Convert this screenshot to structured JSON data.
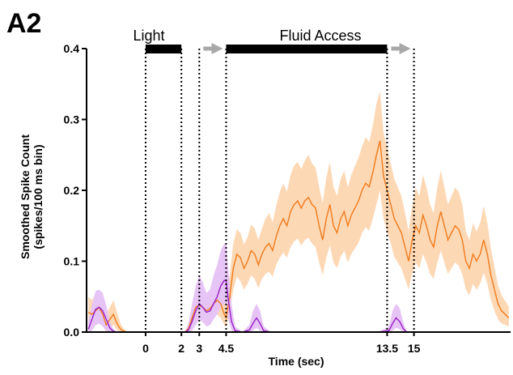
{
  "panel_label": "A2",
  "chart_data": {
    "type": "line",
    "title": "",
    "xlabel": "Time (sec)",
    "ylabel_line1": "Smoothed Spike Count",
    "ylabel_line2": "(spikes/100 ms bin)",
    "xlim": [
      -3.3,
      20.4
    ],
    "ylim": [
      0,
      0.4
    ],
    "yticks": [
      "0.0",
      "0.1",
      "0.2",
      "0.3",
      "0.4"
    ],
    "ytick_values": [
      0,
      0.1,
      0.2,
      0.3,
      0.4
    ],
    "xticks": [
      "0",
      "2",
      "3",
      "4.5",
      "13.5",
      "15"
    ],
    "xtick_values": [
      0,
      2,
      3,
      4.5,
      13.5,
      15
    ],
    "event_lines": [
      0,
      2,
      3,
      4.5,
      13.5,
      15
    ],
    "event_bars": [
      {
        "label": "Light",
        "start": 0,
        "end": 2
      },
      {
        "label": "Fluid Access",
        "start": 4.5,
        "end": 13.5
      }
    ],
    "arrows": [
      {
        "from": 3,
        "to": 4.5
      },
      {
        "from": 13.5,
        "to": 15
      }
    ],
    "colors": {
      "orange_line": "#f07a1a",
      "orange_band": "#fdd8b5",
      "purple_line": "#9b1fc8",
      "purple_band": "#e6c4f5",
      "arrow": "#a8a8a8"
    },
    "series": [
      {
        "x": [
          -3.2,
          -3.0,
          -2.8,
          -2.6,
          -2.4,
          -2.2,
          -2.0,
          -1.8,
          -1.6,
          -1.4,
          -1.2,
          -1.0,
          -0.8,
          -0.6,
          -0.4,
          -0.2,
          0.0,
          0.5,
          1.0,
          1.5,
          2.0,
          2.2,
          2.4,
          2.6,
          2.8,
          3.0,
          3.2,
          3.4,
          3.6,
          3.8,
          4.0,
          4.2,
          4.4,
          4.5,
          4.7,
          4.9,
          5.1,
          5.3,
          5.5,
          5.7,
          5.9,
          6.1,
          6.3,
          6.5,
          6.7,
          6.9,
          7.1,
          7.3,
          7.5,
          7.7,
          7.9,
          8.1,
          8.3,
          8.5,
          8.7,
          8.9,
          9.1,
          9.3,
          9.5,
          9.7,
          9.9,
          10.1,
          10.3,
          10.5,
          10.7,
          10.9,
          11.1,
          11.3,
          11.5,
          11.7,
          11.9,
          12.1,
          12.3,
          12.5,
          12.7,
          12.9,
          13.1,
          13.3,
          13.5,
          13.7,
          13.9,
          14.1,
          14.3,
          14.5,
          14.7,
          14.9,
          15.1,
          15.3,
          15.5,
          15.7,
          15.9,
          16.1,
          16.3,
          16.5,
          16.7,
          16.9,
          17.1,
          17.3,
          17.5,
          17.7,
          17.9,
          18.1,
          18.3,
          18.5,
          18.7,
          18.9,
          19.1,
          19.3,
          19.5,
          19.7,
          19.9,
          20.1,
          20.3
        ],
        "y": [
          0.028,
          0.025,
          0.03,
          0.035,
          0.025,
          0.01,
          0.018,
          0.025,
          0.012,
          0.004,
          0.001,
          0,
          0,
          0,
          0,
          0,
          0,
          0,
          0,
          0,
          0,
          0,
          0.005,
          0.02,
          0.035,
          0.038,
          0.035,
          0.03,
          0.033,
          0.04,
          0.045,
          0.04,
          0.025,
          0.02,
          0.05,
          0.09,
          0.11,
          0.105,
          0.09,
          0.1,
          0.115,
          0.11,
          0.095,
          0.11,
          0.12,
          0.125,
          0.115,
          0.135,
          0.15,
          0.16,
          0.15,
          0.17,
          0.18,
          0.185,
          0.175,
          0.185,
          0.19,
          0.18,
          0.175,
          0.15,
          0.13,
          0.16,
          0.18,
          0.15,
          0.14,
          0.16,
          0.17,
          0.15,
          0.165,
          0.175,
          0.185,
          0.2,
          0.21,
          0.205,
          0.225,
          0.25,
          0.27,
          0.22,
          0.2,
          0.18,
          0.16,
          0.15,
          0.14,
          0.12,
          0.1,
          0.13,
          0.15,
          0.14,
          0.165,
          0.15,
          0.13,
          0.12,
          0.15,
          0.17,
          0.15,
          0.13,
          0.14,
          0.15,
          0.145,
          0.13,
          0.1,
          0.09,
          0.11,
          0.1,
          0.11,
          0.13,
          0.11,
          0.08,
          0.06,
          0.04,
          0.03,
          0.025,
          0.02
        ],
        "lower": [
          0.012,
          0.01,
          0.015,
          0.018,
          0.01,
          0.0,
          0.005,
          0.01,
          0.003,
          0,
          0,
          0,
          0,
          0,
          0,
          0,
          0,
          0,
          0,
          0,
          0,
          0,
          0,
          0.008,
          0.018,
          0.02,
          0.018,
          0.014,
          0.016,
          0.022,
          0.025,
          0.02,
          0.01,
          0.008,
          0.028,
          0.06,
          0.078,
          0.072,
          0.06,
          0.068,
          0.08,
          0.075,
          0.062,
          0.075,
          0.082,
          0.085,
          0.078,
          0.095,
          0.105,
          0.112,
          0.105,
          0.12,
          0.128,
          0.132,
          0.122,
          0.13,
          0.133,
          0.125,
          0.12,
          0.098,
          0.08,
          0.105,
          0.122,
          0.098,
          0.09,
          0.106,
          0.115,
          0.098,
          0.11,
          0.118,
          0.126,
          0.14,
          0.148,
          0.143,
          0.16,
          0.18,
          0.2,
          0.16,
          0.142,
          0.125,
          0.106,
          0.098,
          0.09,
          0.075,
          0.06,
          0.083,
          0.098,
          0.09,
          0.11,
          0.098,
          0.082,
          0.075,
          0.098,
          0.115,
          0.098,
          0.082,
          0.09,
          0.098,
          0.094,
          0.082,
          0.06,
          0.052,
          0.068,
          0.06,
          0.068,
          0.084,
          0.068,
          0.045,
          0.03,
          0.018,
          0.012,
          0.01,
          0.008
        ],
        "upper": [
          0.05,
          0.045,
          0.055,
          0.06,
          0.048,
          0.025,
          0.035,
          0.045,
          0.028,
          0.012,
          0.004,
          0,
          0,
          0,
          0,
          0,
          0,
          0,
          0,
          0,
          0,
          0,
          0.012,
          0.04,
          0.06,
          0.062,
          0.058,
          0.052,
          0.056,
          0.065,
          0.07,
          0.064,
          0.045,
          0.038,
          0.08,
          0.125,
          0.145,
          0.14,
          0.124,
          0.134,
          0.152,
          0.146,
          0.13,
          0.146,
          0.16,
          0.168,
          0.155,
          0.178,
          0.198,
          0.21,
          0.198,
          0.222,
          0.235,
          0.24,
          0.23,
          0.242,
          0.25,
          0.238,
          0.232,
          0.205,
          0.182,
          0.218,
          0.24,
          0.205,
          0.192,
          0.216,
          0.228,
          0.204,
          0.222,
          0.234,
          0.246,
          0.262,
          0.275,
          0.268,
          0.292,
          0.322,
          0.34,
          0.282,
          0.26,
          0.238,
          0.216,
          0.204,
          0.192,
          0.168,
          0.142,
          0.178,
          0.204,
          0.192,
          0.222,
          0.204,
          0.18,
          0.168,
          0.204,
          0.228,
          0.204,
          0.18,
          0.192,
          0.204,
          0.198,
          0.18,
          0.142,
          0.13,
          0.154,
          0.142,
          0.154,
          0.178,
          0.154,
          0.118,
          0.092,
          0.066,
          0.052,
          0.044,
          0.036
        ]
      },
      {
        "x": [
          -3.2,
          -3.0,
          -2.8,
          -2.6,
          -2.4,
          -2.2,
          -2.0,
          -1.8,
          -1.6,
          0.0,
          1.0,
          2.0,
          2.2,
          2.4,
          2.6,
          2.8,
          3.0,
          3.2,
          3.4,
          3.6,
          3.8,
          4.0,
          4.2,
          4.4,
          4.5,
          4.6,
          4.8,
          5.0,
          5.4,
          5.8,
          6.0,
          6.2,
          6.4,
          6.6,
          7.0,
          9.0,
          11.0,
          13.0,
          13.6,
          13.8,
          14.0,
          14.2,
          14.4,
          14.6,
          15.0,
          17.0,
          19.0,
          20.3
        ],
        "y": [
          0.004,
          0.018,
          0.032,
          0.035,
          0.03,
          0.018,
          0.006,
          0.001,
          0,
          0,
          0,
          0,
          0,
          0.003,
          0.015,
          0.03,
          0.04,
          0.035,
          0.028,
          0.03,
          0.04,
          0.05,
          0.065,
          0.073,
          0.072,
          0.05,
          0.015,
          0.002,
          0,
          0.003,
          0.012,
          0.02,
          0.012,
          0.002,
          0,
          0,
          0,
          0,
          0.002,
          0.012,
          0.02,
          0.015,
          0.005,
          0,
          0,
          0,
          0,
          0
        ],
        "lower": [
          0,
          0.002,
          0.01,
          0.012,
          0.008,
          0.002,
          0,
          0,
          0,
          0,
          0,
          0,
          0,
          0,
          0.002,
          0.01,
          0.018,
          0.014,
          0.008,
          0.01,
          0.018,
          0.025,
          0.035,
          0.04,
          0.038,
          0.02,
          0.002,
          0,
          0,
          0,
          0.002,
          0.006,
          0.002,
          0,
          0,
          0,
          0,
          0,
          0,
          0.002,
          0.006,
          0.004,
          0,
          0,
          0,
          0,
          0,
          0
        ],
        "upper": [
          0.015,
          0.038,
          0.058,
          0.06,
          0.055,
          0.038,
          0.015,
          0.004,
          0,
          0,
          0,
          0,
          0,
          0.012,
          0.04,
          0.065,
          0.08,
          0.07,
          0.055,
          0.06,
          0.08,
          0.095,
          0.115,
          0.125,
          0.124,
          0.095,
          0.04,
          0.008,
          0,
          0.01,
          0.03,
          0.04,
          0.03,
          0.008,
          0,
          0,
          0,
          0,
          0.008,
          0.03,
          0.04,
          0.034,
          0.014,
          0,
          0,
          0,
          0,
          0
        ]
      }
    ]
  }
}
